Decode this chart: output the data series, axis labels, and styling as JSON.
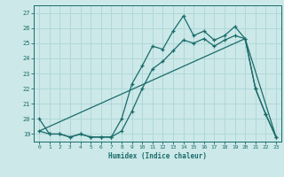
{
  "xlabel": "Humidex (Indice chaleur)",
  "xlim": [
    -0.5,
    23.5
  ],
  "ylim": [
    18.5,
    27.5
  ],
  "yticks": [
    19,
    20,
    21,
    22,
    23,
    24,
    25,
    26,
    27
  ],
  "xticks": [
    0,
    1,
    2,
    3,
    4,
    5,
    6,
    7,
    8,
    9,
    10,
    11,
    12,
    13,
    14,
    15,
    16,
    17,
    18,
    19,
    20,
    21,
    22,
    23
  ],
  "background_color": "#cce8e8",
  "grid_color": "#b0d8d8",
  "line_color": "#1a6b6b",
  "line1_x": [
    0,
    1,
    2,
    3,
    4,
    5,
    6,
    7,
    8,
    9,
    10,
    11,
    12,
    13,
    14,
    15,
    16,
    17,
    18,
    19,
    20,
    21,
    22,
    23
  ],
  "line1_y": [
    20.0,
    19.0,
    19.0,
    18.8,
    19.0,
    18.8,
    18.8,
    18.8,
    20.0,
    22.3,
    23.5,
    24.8,
    24.6,
    25.8,
    26.8,
    25.5,
    25.8,
    25.2,
    25.5,
    26.1,
    25.3,
    22.0,
    20.3,
    18.8
  ],
  "line2_x": [
    0,
    1,
    2,
    3,
    4,
    5,
    6,
    7,
    8,
    9,
    10,
    11,
    12,
    13,
    14,
    15,
    16,
    17,
    18,
    19,
    20,
    21,
    22,
    23
  ],
  "line2_y": [
    19.2,
    19.0,
    19.0,
    18.8,
    19.0,
    18.8,
    18.8,
    18.8,
    19.2,
    20.5,
    22.0,
    23.3,
    23.8,
    24.5,
    25.2,
    25.0,
    25.3,
    24.8,
    25.2,
    25.5,
    25.3,
    22.0,
    20.3,
    18.8
  ],
  "line3_x": [
    0,
    20,
    23
  ],
  "line3_y": [
    19.2,
    25.3,
    18.8
  ]
}
